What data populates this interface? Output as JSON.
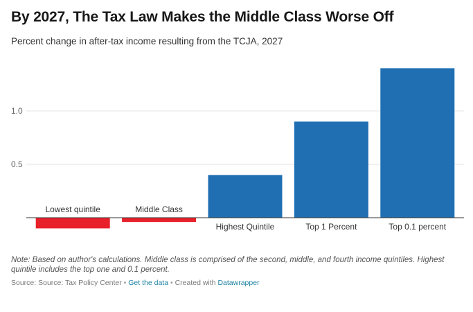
{
  "header": {
    "title": "By 2027, The Tax Law Makes the Middle Class Worse Off",
    "subtitle": "Percent change in after-tax income resulting from the TCJA, 2027"
  },
  "chart_data": {
    "type": "bar",
    "title": "By 2027, The Tax Law Makes the Middle Class Worse Off",
    "subtitle": "Percent change in after-tax income resulting from the TCJA, 2027",
    "xlabel": "",
    "ylabel": "",
    "categories": [
      "Lowest quintile",
      "Middle Class",
      "Highest Quintile",
      "Top 1 Percent",
      "Top 0.1 percent"
    ],
    "values": [
      -0.1,
      -0.04,
      0.4,
      0.9,
      1.4
    ],
    "ylim": [
      -0.12,
      1.45
    ],
    "yticks": [
      0.5,
      1.0
    ],
    "ytick_labels": [
      "0.5",
      "1.0"
    ],
    "grid": true,
    "colors": {
      "positive": "#1f6fb2",
      "negative": "#e8202a"
    }
  },
  "footer": {
    "note": "Note: Based on author's calculations. Middle class is comprised of the second, middle, and fourth income quintiles. Highest quintile includes the top one and 0.1 percent.",
    "source_prefix": "Source: Source: Tax Policy Center",
    "separator": "•",
    "get_data_label": "Get the data",
    "created_with": "Created with",
    "tool_name": "Datawrapper"
  }
}
